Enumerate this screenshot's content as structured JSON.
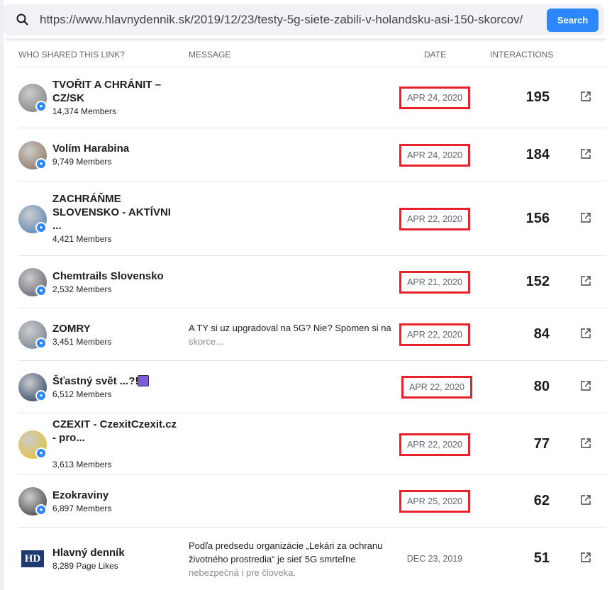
{
  "search": {
    "url": "https://www.hlavnydennik.sk/2019/12/23/testy-5g-siete-zabili-v-holandsku-asi-150-skorcov/",
    "button": "Search"
  },
  "headers": {
    "who": "WHO SHARED THIS LINK?",
    "message": "MESSAGE",
    "date": "DATE",
    "interactions": "INTERACTIONS"
  },
  "colors": {
    "accent": "#2d88ff",
    "highlight": "#e8222a"
  },
  "rows": [
    {
      "name": "TVOŘIT A CHRÁNIT – CZ/SK",
      "sub": "14,374 Members",
      "msg": "",
      "msg_fade": "",
      "date": "APR 24, 2020",
      "interactions": "195",
      "highlighted": true
    },
    {
      "name": "Volím Harabina",
      "sub": "9,749 Members",
      "msg": "",
      "msg_fade": "",
      "date": "APR 24, 2020",
      "interactions": "184",
      "highlighted": true
    },
    {
      "name": "ZACHRÁŇME SLOVENSKO - AKTÍVNI ...",
      "sub": "4,421 Members",
      "msg": "",
      "msg_fade": "",
      "date": "APR 22, 2020",
      "interactions": "156",
      "highlighted": true
    },
    {
      "name": "Chemtrails Slovensko",
      "sub": "2,532 Members",
      "msg": "",
      "msg_fade": "",
      "date": "APR 21, 2020",
      "interactions": "152",
      "highlighted": true
    },
    {
      "name": "ZOMRY",
      "sub": "3,451 Members",
      "msg": "A TY si uz upgradoval na 5G? Nie? Spomen si na",
      "msg_fade": "skorce...",
      "date": "APR 22, 2020",
      "interactions": "84",
      "highlighted": true
    },
    {
      "name": "Šťastný svět ...?!",
      "sub": "6,512 Members",
      "msg": "",
      "msg_fade": "",
      "date": "APR 22, 2020",
      "interactions": "80",
      "highlighted": true
    },
    {
      "name": "CZEXIT - CzexitCzexit.cz - pro...",
      "sub": "3,613 Members",
      "msg": "",
      "msg_fade": "",
      "date": "APR 22, 2020",
      "interactions": "77",
      "highlighted": true
    },
    {
      "name": "Ezokraviny",
      "sub": "6,897 Members",
      "msg": "",
      "msg_fade": "",
      "date": "APR 25, 2020",
      "interactions": "62",
      "highlighted": true
    },
    {
      "name": "Hlavný denník",
      "sub": "8,289 Page Likes",
      "msg": "Podľa predsedu organizácie „Lekári za ochranu životného prostredia“ je sieť 5G smrteľne",
      "msg_fade": "nebezpečná i pre človeka.",
      "date": "DEC 23, 2019",
      "interactions": "51",
      "highlighted": false,
      "logo": "HD"
    }
  ]
}
